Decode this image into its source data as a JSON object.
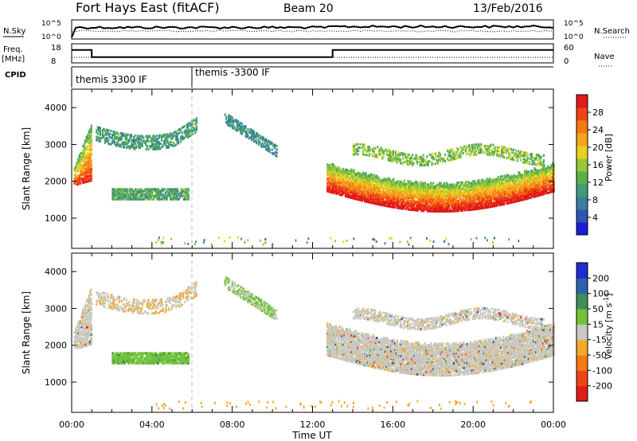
{
  "header": {
    "station": "Fort Hays East (fitACF)",
    "beam": "Beam 20",
    "date": "13/Feb/2016"
  },
  "status_panels": {
    "nsky_label": "N.Sky",
    "nsearch_label": "N.Search",
    "freq_label_line1": "Freq.",
    "freq_label_line2": "[MHz]",
    "nave_label": "Nave",
    "cpid_label": "CPID",
    "noise_ticks_left": [
      "10^5",
      "10^0"
    ],
    "noise_ticks_right": [
      "10^5",
      "10^0"
    ],
    "freq_ticks": [
      "18",
      "8"
    ],
    "nave_ticks": [
      "60",
      "0"
    ],
    "cpid_segments": [
      {
        "label": "themis 3300 IF",
        "start_hour": 0.0
      },
      {
        "label": "themis -3300 IF",
        "start_hour": 6.0
      }
    ],
    "frequency_trace": [
      {
        "hour": 0.0,
        "mhz": 14.8
      },
      {
        "hour": 1.0,
        "mhz": 11.0
      },
      {
        "hour": 13.0,
        "mhz": 14.8
      },
      {
        "hour": 24.0,
        "mhz": 14.8
      }
    ]
  },
  "chart_data": [
    {
      "type": "heatmap",
      "title": "",
      "quantity": "Power",
      "xlabel": "Time UT",
      "ylabel": "Slant Range [km]",
      "xlim": [
        0,
        24
      ],
      "ylim": [
        180,
        4500
      ],
      "xticks": [
        "00:00",
        "04:00",
        "08:00",
        "12:00",
        "16:00",
        "20:00",
        "00:00"
      ],
      "yticks": [
        1000,
        2000,
        3000,
        4000
      ],
      "colorbar": {
        "label": "Power [dB]",
        "ticks": [
          4,
          8,
          12,
          16,
          20,
          24,
          28
        ],
        "range": [
          0,
          32
        ],
        "colors": [
          "#1b1bd6",
          "#2f55b0",
          "#3a7ea0",
          "#3f9b7a",
          "#5cb04a",
          "#97c93a",
          "#e8d21e",
          "#f4a51c",
          "#f47a14",
          "#ef4515",
          "#e21a1a"
        ]
      },
      "features": [
        {
          "region": "early echo",
          "hours": [
            0.0,
            1.0
          ],
          "range_km": [
            1800,
            3600
          ],
          "power_db": [
            12,
            26
          ]
        },
        {
          "region": "upper band",
          "hours": [
            1.2,
            6.2
          ],
          "range_km": [
            2900,
            3600
          ],
          "power_db": [
            6,
            14
          ]
        },
        {
          "region": "mid band",
          "hours": [
            2.0,
            5.8
          ],
          "range_km": [
            1500,
            1800
          ],
          "power_db": [
            8,
            14
          ]
        },
        {
          "region": "evening band",
          "hours": [
            7.5,
            10.3
          ],
          "range_km": [
            2600,
            3900
          ],
          "power_db": [
            6,
            12
          ]
        },
        {
          "region": "main echo",
          "hours": [
            12.7,
            24.0
          ],
          "range_km": [
            1100,
            2200
          ],
          "power_db": [
            14,
            30
          ]
        },
        {
          "region": "upper streaks",
          "hours": [
            14.0,
            23.5
          ],
          "range_km": [
            2300,
            3100
          ],
          "power_db": [
            10,
            18
          ]
        }
      ]
    },
    {
      "type": "heatmap",
      "title": "",
      "quantity": "Velocity",
      "xlabel": "Time UT",
      "ylabel": "Slant Range [km]",
      "xlim": [
        0,
        24
      ],
      "ylim": [
        180,
        4500
      ],
      "xticks": [
        "00:00",
        "04:00",
        "08:00",
        "12:00",
        "16:00",
        "20:00",
        "00:00"
      ],
      "yticks": [
        1000,
        2000,
        3000,
        4000
      ],
      "colorbar": {
        "label_line1": "Velocity",
        "label_line2": "[m s",
        "label_sup": "-1",
        "label_end": "]",
        "ticks": [
          200,
          100,
          50,
          15,
          -15,
          -50,
          -100,
          -200
        ],
        "colors": [
          "#1d2bd0",
          "#2b63a8",
          "#3f8f58",
          "#73c23a",
          "#c8c8c0",
          "#f2aa2a",
          "#f47a14",
          "#ef4515",
          "#e21a1a"
        ]
      },
      "features": [
        {
          "region": "early echo",
          "hours": [
            0.0,
            1.0
          ],
          "range_km": [
            1800,
            3600
          ],
          "velocity_ms": [
            -20,
            20
          ]
        },
        {
          "region": "mid band",
          "hours": [
            2.0,
            5.8
          ],
          "range_km": [
            1500,
            1800
          ],
          "velocity_ms": [
            40,
            60
          ]
        },
        {
          "region": "evening band",
          "hours": [
            7.5,
            10.3
          ],
          "range_km": [
            2600,
            3900
          ],
          "velocity_ms": [
            15,
            40
          ]
        },
        {
          "region": "main echo",
          "hours": [
            12.7,
            24.0
          ],
          "range_km": [
            1100,
            2700
          ],
          "velocity_ms": [
            -15,
            15
          ]
        }
      ]
    }
  ]
}
